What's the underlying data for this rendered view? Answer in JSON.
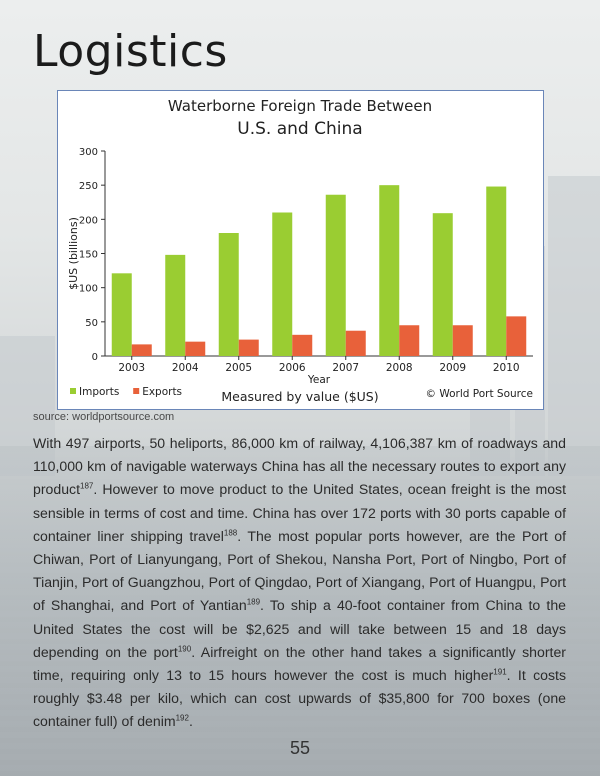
{
  "page": {
    "title": "Logistics",
    "source": "source: worldportsource.com",
    "page_number": "55",
    "paragraph": [
      {
        "t": "With 497 airports, 50 heliports, 86,000 km of railway, 4,106,387 km of roadways and 110,000 km of navigable waterways China has all the necessary routes to export any product"
      },
      {
        "sup": "187"
      },
      {
        "t": ". However to move product to the United States, ocean freight is the most sensible in terms of cost and time. China has over 172 ports with 30 ports capable of container liner shipping travel"
      },
      {
        "sup": "188"
      },
      {
        "t": ". The most popular ports however, are the Port of Chiwan, Port of Lianyungang, Port of Shekou, Nansha Port, Port of Ningbo, Port of Tianjin, Port of Guangzhou, Port of Qingdao, Port of Xiangang, Port of Huangpu, Port of Shanghai, and Port of Yantian"
      },
      {
        "sup": "189"
      },
      {
        "t": ". To ship a 40-foot container from China to the United States the cost will be $2,625 and will take between 15 and 18 days depending on the port"
      },
      {
        "sup": "190"
      },
      {
        "t": ".  Airfreight on the other hand takes a significantly shorter time, requiring only 13 to 15 hours however the cost is much higher"
      },
      {
        "sup": "191"
      },
      {
        "t": ". It costs roughly $3.48 per kilo, which can cost upwards of $35,800 for 700 boxes (one container full) of denim"
      },
      {
        "sup": "192"
      },
      {
        "t": "."
      }
    ]
  },
  "chart_data": {
    "type": "bar",
    "title_line1": "Waterborne Foreign Trade Between",
    "title_line2": "U.S. and China",
    "xlabel": "Year",
    "ylabel": "$US (billions)",
    "ylim": [
      0,
      300
    ],
    "yticks": [
      0,
      50,
      100,
      150,
      200,
      250,
      300
    ],
    "categories": [
      "2003",
      "2004",
      "2005",
      "2006",
      "2007",
      "2008",
      "2009",
      "2010"
    ],
    "series": [
      {
        "name": "Imports",
        "color": "#9acd32",
        "values": [
          121,
          148,
          180,
          210,
          236,
          250,
          209,
          248
        ]
      },
      {
        "name": "Exports",
        "color": "#e8613a",
        "values": [
          17,
          21,
          24,
          31,
          37,
          45,
          45,
          58
        ]
      }
    ],
    "footer_note": "Measured by value ($US)",
    "credit": "© World Port Source",
    "legend_position": "bottom-left",
    "grid": false
  }
}
